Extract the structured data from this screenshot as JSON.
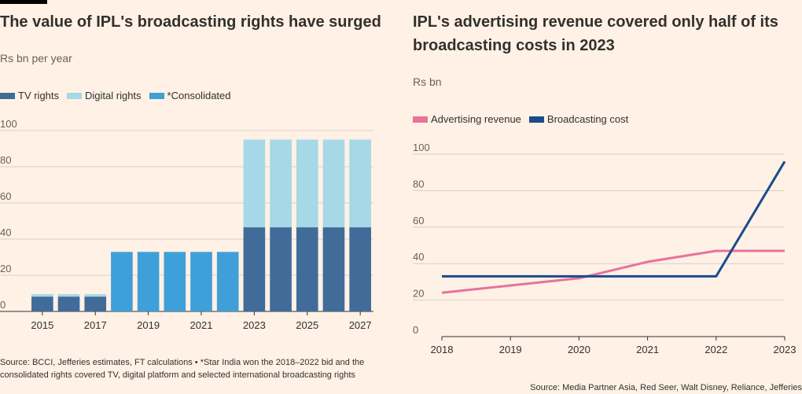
{
  "left_chart": {
    "title": "The value of IPL's broadcasting rights have surged",
    "subtitle": "Rs bn per year",
    "source": "Source: BCCI, Jefferies estimates, FT calculations • *Star India won the 2018–2022 bid and the consolidated rights covered TV, digital platform and selected international broadcasting rights"
  },
  "right_chart": {
    "title": "IPL's advertising revenue covered only half of its broadcasting costs in 2023",
    "subtitle": "Rs bn",
    "source": "Source: Media Partner Asia, Red Seer, Walt Disney, Reliance, Jefferies"
  },
  "colors": {
    "tv": "#416c9a",
    "digital": "#a6d8e7",
    "consolidated": "#3f9fd8",
    "advertising": "#e8739b",
    "broadcasting": "#1a4b8c",
    "grid": "#d9cfc7",
    "axis": "#33302e"
  },
  "chart_data": [
    {
      "type": "bar",
      "stacked": true,
      "categories": [
        "2015",
        "2016",
        "2017",
        "2018",
        "2019",
        "2020",
        "2021",
        "2022",
        "2023",
        "2024",
        "2025",
        "2026",
        "2027"
      ],
      "x_tick_labels": [
        "2015",
        "2017",
        "2019",
        "2021",
        "2023",
        "2025",
        "2027"
      ],
      "series": [
        {
          "name": "TV rights",
          "values": [
            8.2,
            8.2,
            8.2,
            0,
            0,
            0,
            0,
            0,
            46.5,
            46.5,
            46.5,
            46.5,
            46.5
          ]
        },
        {
          "name": "Digital rights",
          "values": [
            1.3,
            1.3,
            1.3,
            0,
            0,
            0,
            0,
            0,
            48.5,
            48.5,
            48.5,
            48.5,
            48.5
          ]
        },
        {
          "name": "*Consolidated",
          "values": [
            0,
            0,
            0,
            32.9,
            32.9,
            32.9,
            32.9,
            32.9,
            0,
            0,
            0,
            0,
            0
          ]
        }
      ],
      "yticks": [
        0,
        20,
        40,
        60,
        80,
        100
      ],
      "ylim": [
        0,
        100
      ],
      "legend": "top-left",
      "grid": true
    },
    {
      "type": "line",
      "x": [
        2018,
        2019,
        2020,
        2021,
        2022,
        2023
      ],
      "x_tick_labels": [
        "2018",
        "2019",
        "2020",
        "2021",
        "2022",
        "2023"
      ],
      "series": [
        {
          "name": "Advertising revenue",
          "values": [
            24,
            28,
            32,
            41,
            47,
            47
          ]
        },
        {
          "name": "Broadcasting cost",
          "values": [
            33,
            33,
            33,
            33,
            33,
            96
          ]
        }
      ],
      "yticks": [
        0,
        20,
        40,
        60,
        80,
        100
      ],
      "ylim": [
        0,
        100
      ],
      "legend": "top-left",
      "grid": true
    }
  ]
}
